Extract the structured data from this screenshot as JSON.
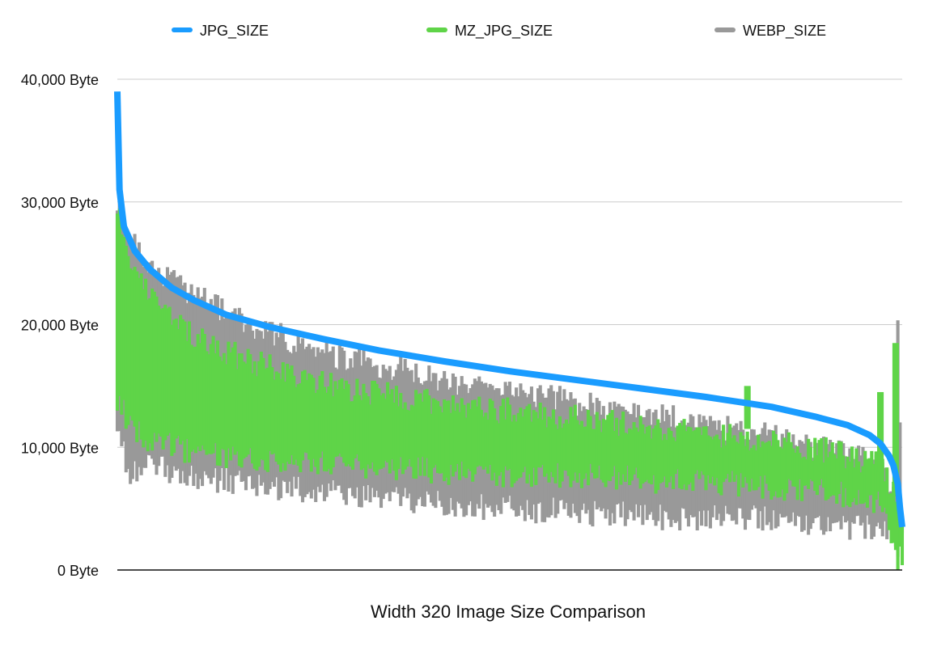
{
  "chart_data": {
    "type": "line",
    "xlabel": "Width 320 Image Size Comparison",
    "ylabel": "",
    "x_unit": "image index (sorted by JPG_SIZE, descending)",
    "x_count": 360,
    "ylim": [
      0,
      40000
    ],
    "yticks": [
      0,
      10000,
      20000,
      30000,
      40000
    ],
    "ytick_labels": [
      "0 Byte",
      "10,000 Byte",
      "20,000 Byte",
      "30,000 Byte",
      "40,000 Byte"
    ],
    "grid": true,
    "legend_position": "top",
    "series": [
      {
        "name": "JPG_SIZE",
        "color": "#1a9cff",
        "points": [
          [
            0,
            39000
          ],
          [
            1,
            31000
          ],
          [
            3,
            28000
          ],
          [
            8,
            26000
          ],
          [
            15,
            24500
          ],
          [
            25,
            23000
          ],
          [
            35,
            22000
          ],
          [
            50,
            20800
          ],
          [
            70,
            19800
          ],
          [
            95,
            18800
          ],
          [
            120,
            17900
          ],
          [
            150,
            17000
          ],
          [
            180,
            16200
          ],
          [
            210,
            15500
          ],
          [
            240,
            14800
          ],
          [
            270,
            14100
          ],
          [
            300,
            13300
          ],
          [
            320,
            12500
          ],
          [
            335,
            11800
          ],
          [
            345,
            11000
          ],
          [
            350,
            10300
          ],
          [
            354,
            9300
          ],
          [
            356,
            8500
          ],
          [
            358,
            7000
          ],
          [
            359,
            5000
          ],
          [
            360,
            3500
          ]
        ]
      },
      {
        "name": "MZ_JPG_SIZE",
        "color": "#5fd448",
        "band": true,
        "points": [
          [
            0,
            14000,
            30000
          ],
          [
            5,
            12000,
            26000
          ],
          [
            15,
            10500,
            22500
          ],
          [
            30,
            9800,
            19500
          ],
          [
            60,
            9200,
            17000
          ],
          [
            100,
            8600,
            15000
          ],
          [
            150,
            8000,
            13500
          ],
          [
            200,
            7700,
            12600
          ],
          [
            250,
            7300,
            11500
          ],
          [
            300,
            6800,
            10400
          ],
          [
            330,
            6300,
            9600
          ],
          [
            350,
            5300,
            8500
          ],
          [
            356,
            2000,
            6500
          ],
          [
            358,
            800,
            5000
          ],
          [
            360,
            1000,
            4500
          ]
        ],
        "spikes": [
          [
            289,
            11500,
            15000
          ],
          [
            350,
            8000,
            14500
          ],
          [
            357,
            6000,
            18500
          ]
        ]
      },
      {
        "name": "WEBP_SIZE",
        "color": "#999999",
        "band": true,
        "points": [
          [
            0,
            12000,
            30000
          ],
          [
            5,
            8000,
            27000
          ],
          [
            15,
            8500,
            25000
          ],
          [
            30,
            7800,
            23000
          ],
          [
            60,
            7000,
            20000
          ],
          [
            100,
            6200,
            17500
          ],
          [
            150,
            5300,
            15500
          ],
          [
            200,
            4800,
            14000
          ],
          [
            250,
            4300,
            12500
          ],
          [
            300,
            4300,
            11000
          ],
          [
            330,
            3700,
            9700
          ],
          [
            350,
            3200,
            8600
          ],
          [
            356,
            2500,
            6500
          ],
          [
            358,
            2000,
            20500
          ],
          [
            360,
            3000,
            4500
          ]
        ]
      }
    ]
  }
}
